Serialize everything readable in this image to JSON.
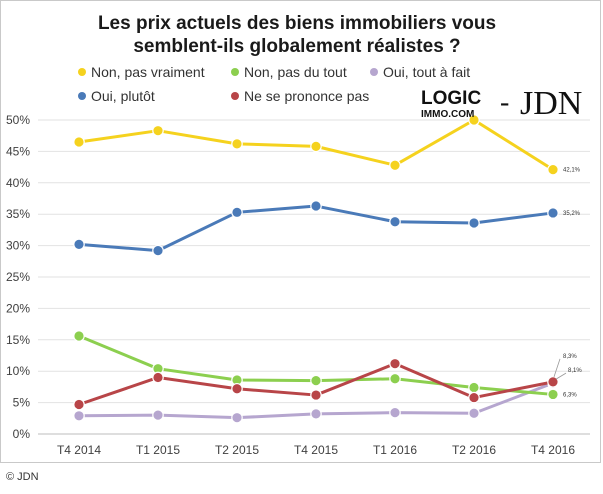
{
  "chart_data": {
    "type": "line",
    "title_lines": [
      "Les prix actuels des biens immobiliers vous",
      "semblent-ils globalement réalistes ?"
    ],
    "categories": [
      "T4 2014",
      "T1 2015",
      "T2 2015",
      "T4 2015",
      "T1 2016",
      "T2 2016",
      "T4 2016"
    ],
    "y_ticks": [
      "0%",
      "5%",
      "10%",
      "15%",
      "20%",
      "25%",
      "30%",
      "35%",
      "40%",
      "45%",
      "50%"
    ],
    "ylim": [
      0,
      50
    ],
    "grid": true,
    "legend_position": "top",
    "series": [
      {
        "name": "Non, pas vraiment",
        "color": "#f5d21e",
        "values": [
          46.5,
          48.3,
          46.2,
          45.8,
          42.8,
          50.0,
          42.1
        ],
        "end_label": "42,1%"
      },
      {
        "name": "Non, pas du tout",
        "color": "#8ccf4f",
        "values": [
          15.6,
          10.4,
          8.6,
          8.5,
          8.8,
          7.4,
          6.3
        ],
        "end_label": "6,3%"
      },
      {
        "name": "Oui, tout à fait",
        "color": "#b6a6cf",
        "values": [
          2.9,
          3.0,
          2.6,
          3.2,
          3.4,
          3.3,
          8.1
        ],
        "end_label": "8,1%"
      },
      {
        "name": "Oui, plutôt",
        "color": "#4a7ab8",
        "values": [
          30.2,
          29.2,
          35.3,
          36.3,
          33.8,
          33.6,
          35.2
        ],
        "end_label": "35,2%"
      },
      {
        "name": "Ne se prononce pas",
        "color": "#b84548",
        "values": [
          4.7,
          9.0,
          7.2,
          6.2,
          11.2,
          5.8,
          8.3
        ],
        "end_label": "8,3%"
      }
    ]
  },
  "logo": {
    "logic": "LOGIC",
    "immo": "IMMO.COM",
    "dash": "-",
    "jdn": "JDN"
  },
  "footer": {
    "copyright": "© JDN"
  }
}
